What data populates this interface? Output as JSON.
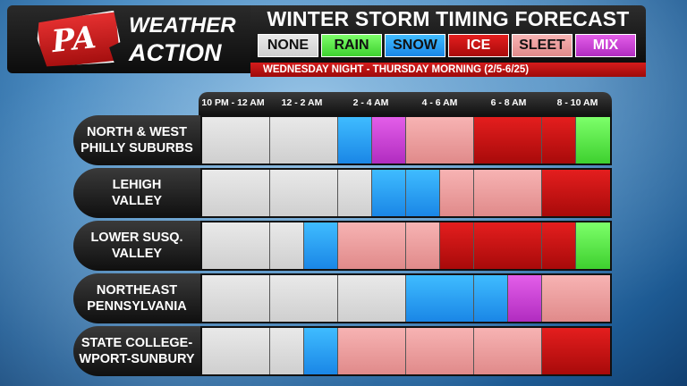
{
  "brand": {
    "badge": "PA",
    "line1": "WEATHER",
    "line2": "ACTION"
  },
  "title": "WINTER STORM TIMING FORECAST",
  "subtitle": "WEDNESDAY NIGHT - THURSDAY MORNING (2/5-6/25)",
  "legend": [
    {
      "key": "none",
      "label": "NONE",
      "color": "#d9d9d9",
      "text_color": "#111111"
    },
    {
      "key": "rain",
      "label": "RAIN",
      "color": "#4ddc3a",
      "text_color": "#111111"
    },
    {
      "key": "snow",
      "label": "SNOW",
      "color": "#2aa3f5",
      "text_color": "#111111"
    },
    {
      "key": "ice",
      "label": "ICE",
      "color": "#c41414",
      "text_color": "#ffffff"
    },
    {
      "key": "sleet",
      "label": "SLEET",
      "color": "#ee9f9f",
      "text_color": "#111111"
    },
    {
      "key": "mix",
      "label": "MIX",
      "color": "#c93fd4",
      "text_color": "#ffffff"
    }
  ],
  "time_slots": [
    "10 PM - 12 AM",
    "12 - 2 AM",
    "2 - 4 AM",
    "4 - 6 AM",
    "6 - 8 AM",
    "8 - 10 AM"
  ],
  "regions": [
    {
      "name": "NORTH & WEST\nPHILLY SUBURBS",
      "timeline": [
        [
          "none"
        ],
        [
          "none"
        ],
        [
          "snow",
          "mix"
        ],
        [
          "sleet"
        ],
        [
          "ice"
        ],
        [
          "ice",
          "rain"
        ]
      ]
    },
    {
      "name": "LEHIGH\nVALLEY",
      "timeline": [
        [
          "none"
        ],
        [
          "none"
        ],
        [
          "none",
          "snow"
        ],
        [
          "snow",
          "sleet"
        ],
        [
          "sleet"
        ],
        [
          "ice"
        ]
      ]
    },
    {
      "name": "LOWER SUSQ.\nVALLEY",
      "timeline": [
        [
          "none"
        ],
        [
          "none",
          "snow"
        ],
        [
          "sleet"
        ],
        [
          "sleet",
          "ice"
        ],
        [
          "ice"
        ],
        [
          "ice",
          "rain"
        ]
      ]
    },
    {
      "name": "NORTHEAST\nPENNSYLVANIA",
      "timeline": [
        [
          "none"
        ],
        [
          "none"
        ],
        [
          "none"
        ],
        [
          "snow"
        ],
        [
          "snow",
          "mix"
        ],
        [
          "sleet"
        ]
      ]
    },
    {
      "name": "STATE COLLEGE-\nWPORT-SUNBURY",
      "timeline": [
        [
          "none"
        ],
        [
          "none",
          "snow"
        ],
        [
          "sleet"
        ],
        [
          "sleet"
        ],
        [
          "sleet"
        ],
        [
          "ice"
        ]
      ]
    }
  ]
}
